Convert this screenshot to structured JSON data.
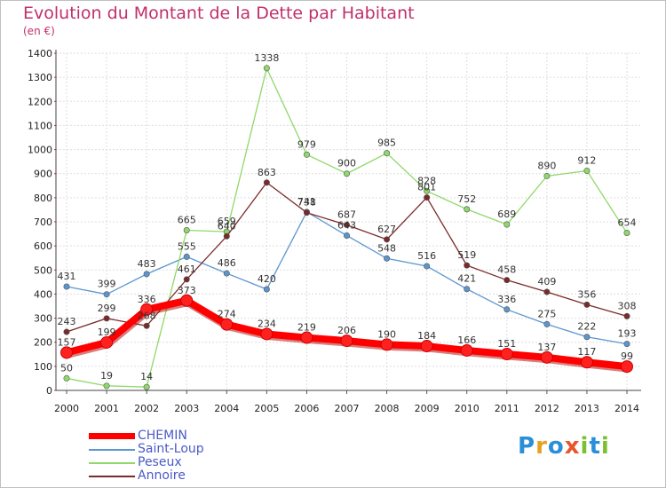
{
  "header": {
    "title": "Evolution du Montant de la Dette par Habitant",
    "subtitle": "(en €)"
  },
  "logo": {
    "letters": [
      {
        "char": "P",
        "color": "#2a8fd8"
      },
      {
        "char": "r",
        "color": "#e8a020"
      },
      {
        "char": "o",
        "color": "#2a8fd8"
      },
      {
        "char": "x",
        "color": "#e8552a"
      },
      {
        "char": "i",
        "color": "#7ac030"
      },
      {
        "char": "t",
        "color": "#2a8fd8"
      },
      {
        "char": "i",
        "color": "#7ac030"
      }
    ]
  },
  "chart_data": {
    "type": "line",
    "x": [
      "2000",
      "2001",
      "2002",
      "2003",
      "2004",
      "2005",
      "2006",
      "2007",
      "2008",
      "2009",
      "2010",
      "2011",
      "2012",
      "2013",
      "2014"
    ],
    "ylim": [
      0,
      1400
    ],
    "yticks": [
      0,
      100,
      200,
      300,
      400,
      500,
      600,
      700,
      800,
      900,
      1000,
      1100,
      1200,
      1300,
      1400
    ],
    "grid": true,
    "legend_position": "bottom-left",
    "series": [
      {
        "name": "CHEMIN",
        "color": "#ff0000",
        "emphasis": true,
        "values": [
          157,
          199,
          336,
          373,
          274,
          234,
          219,
          206,
          190,
          184,
          166,
          151,
          137,
          117,
          99
        ]
      },
      {
        "name": "Saint-Loup",
        "color": "#5b96cf",
        "emphasis": false,
        "values": [
          431,
          399,
          483,
          555,
          486,
          420,
          741,
          643,
          548,
          516,
          421,
          336,
          275,
          222,
          193
        ]
      },
      {
        "name": "Peseux",
        "color": "#8fd86a",
        "emphasis": false,
        "values": [
          50,
          19,
          14,
          665,
          659,
          1338,
          979,
          900,
          985,
          828,
          752,
          689,
          890,
          912,
          654
        ]
      },
      {
        "name": "Annoire",
        "color": "#7a2a2a",
        "emphasis": false,
        "values": [
          243,
          299,
          268,
          461,
          640,
          863,
          738,
          687,
          627,
          801,
          519,
          458,
          409,
          356,
          308
        ]
      }
    ]
  }
}
